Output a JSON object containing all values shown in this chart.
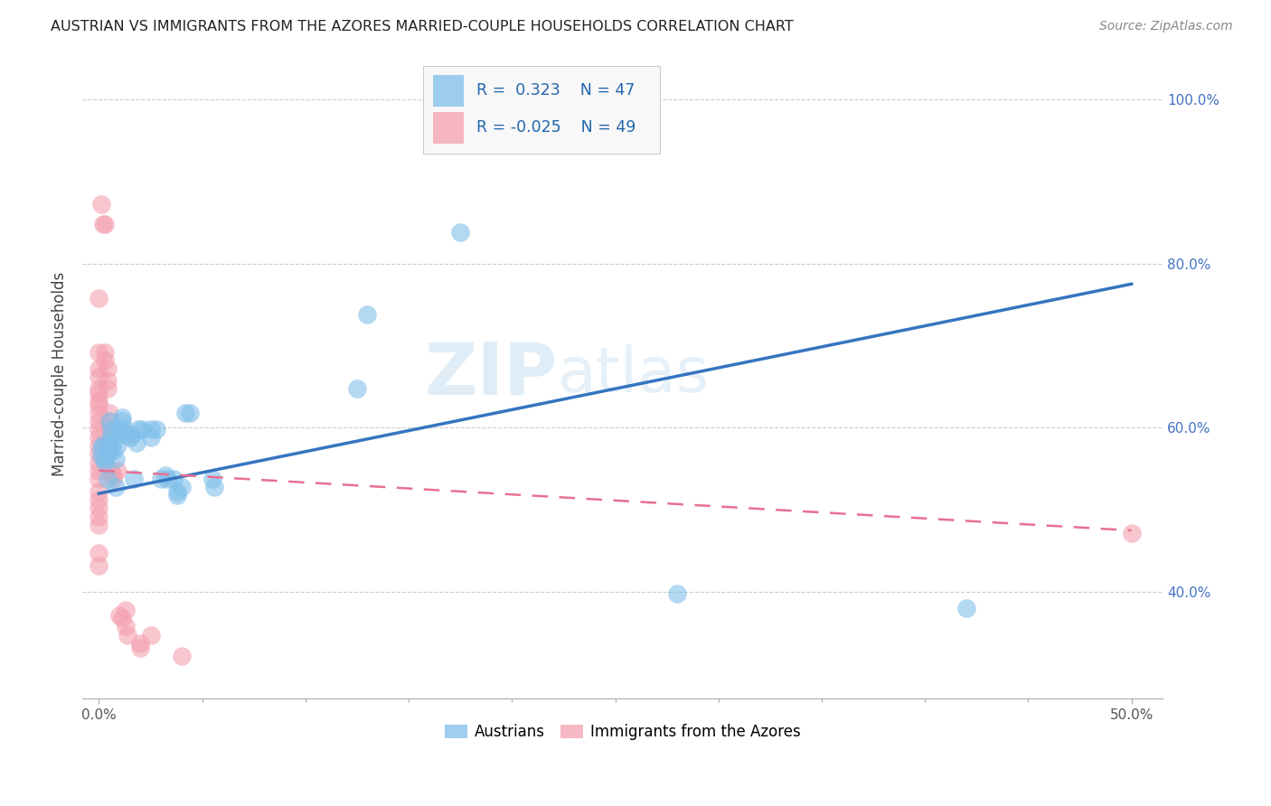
{
  "title": "AUSTRIAN VS IMMIGRANTS FROM THE AZORES MARRIED-COUPLE HOUSEHOLDS CORRELATION CHART",
  "source": "Source: ZipAtlas.com",
  "ylabel": "Married-couple Households",
  "legend_label1": "Austrians",
  "legend_label2": "Immigrants from the Azores",
  "R1": "0.323",
  "N1": "47",
  "R2": "-0.025",
  "N2": "49",
  "blue_color": "#7fbfea",
  "pink_color": "#f4a0b0",
  "blue_line_color": "#3575c0",
  "pink_line_color": "#e87090",
  "blue_scatter": [
    [
      0.001,
      0.575
    ],
    [
      0.001,
      0.565
    ],
    [
      0.002,
      0.58
    ],
    [
      0.003,
      0.558
    ],
    [
      0.003,
      0.562
    ],
    [
      0.004,
      0.568
    ],
    [
      0.004,
      0.572
    ],
    [
      0.004,
      0.538
    ],
    [
      0.005,
      0.608
    ],
    [
      0.005,
      0.582
    ],
    [
      0.006,
      0.598
    ],
    [
      0.006,
      0.592
    ],
    [
      0.007,
      0.582
    ],
    [
      0.007,
      0.572
    ],
    [
      0.008,
      0.528
    ],
    [
      0.008,
      0.562
    ],
    [
      0.009,
      0.578
    ],
    [
      0.01,
      0.598
    ],
    [
      0.011,
      0.608
    ],
    [
      0.011,
      0.612
    ],
    [
      0.012,
      0.598
    ],
    [
      0.013,
      0.592
    ],
    [
      0.015,
      0.588
    ],
    [
      0.016,
      0.592
    ],
    [
      0.017,
      0.538
    ],
    [
      0.018,
      0.582
    ],
    [
      0.019,
      0.598
    ],
    [
      0.021,
      0.598
    ],
    [
      0.025,
      0.598
    ],
    [
      0.025,
      0.588
    ],
    [
      0.028,
      0.598
    ],
    [
      0.03,
      0.538
    ],
    [
      0.032,
      0.542
    ],
    [
      0.033,
      0.538
    ],
    [
      0.036,
      0.538
    ],
    [
      0.038,
      0.518
    ],
    [
      0.038,
      0.522
    ],
    [
      0.04,
      0.528
    ],
    [
      0.042,
      0.618
    ],
    [
      0.044,
      0.618
    ],
    [
      0.055,
      0.538
    ],
    [
      0.056,
      0.528
    ],
    [
      0.125,
      0.648
    ],
    [
      0.13,
      0.738
    ],
    [
      0.175,
      0.838
    ],
    [
      0.28,
      0.398
    ],
    [
      0.42,
      0.38
    ]
  ],
  "pink_scatter": [
    [
      0.0,
      0.758
    ],
    [
      0.0,
      0.692
    ],
    [
      0.0,
      0.672
    ],
    [
      0.0,
      0.662
    ],
    [
      0.0,
      0.648
    ],
    [
      0.0,
      0.642
    ],
    [
      0.0,
      0.632
    ],
    [
      0.0,
      0.628
    ],
    [
      0.0,
      0.618
    ],
    [
      0.0,
      0.608
    ],
    [
      0.0,
      0.598
    ],
    [
      0.0,
      0.588
    ],
    [
      0.0,
      0.578
    ],
    [
      0.0,
      0.568
    ],
    [
      0.0,
      0.558
    ],
    [
      0.0,
      0.548
    ],
    [
      0.0,
      0.538
    ],
    [
      0.0,
      0.522
    ],
    [
      0.0,
      0.512
    ],
    [
      0.0,
      0.502
    ],
    [
      0.0,
      0.492
    ],
    [
      0.0,
      0.482
    ],
    [
      0.0,
      0.448
    ],
    [
      0.0,
      0.432
    ],
    [
      0.001,
      0.872
    ],
    [
      0.002,
      0.848
    ],
    [
      0.003,
      0.848
    ],
    [
      0.003,
      0.692
    ],
    [
      0.003,
      0.682
    ],
    [
      0.004,
      0.672
    ],
    [
      0.004,
      0.658
    ],
    [
      0.004,
      0.648
    ],
    [
      0.005,
      0.618
    ],
    [
      0.005,
      0.608
    ],
    [
      0.005,
      0.598
    ],
    [
      0.006,
      0.548
    ],
    [
      0.007,
      0.542
    ],
    [
      0.007,
      0.538
    ],
    [
      0.009,
      0.548
    ],
    [
      0.01,
      0.372
    ],
    [
      0.011,
      0.368
    ],
    [
      0.013,
      0.378
    ],
    [
      0.013,
      0.358
    ],
    [
      0.014,
      0.348
    ],
    [
      0.02,
      0.338
    ],
    [
      0.02,
      0.332
    ],
    [
      0.025,
      0.348
    ],
    [
      0.04,
      0.322
    ],
    [
      0.5,
      0.472
    ]
  ],
  "xlim": [
    -0.008,
    0.515
  ],
  "ylim": [
    0.27,
    1.06
  ],
  "ytick_vals": [
    0.4,
    0.6,
    0.8,
    1.0
  ],
  "ytick_labels": [
    "40.0%",
    "60.0%",
    "80.0%",
    "100.0%"
  ],
  "xtick_vals": [
    0.0,
    0.5
  ],
  "xtick_labels": [
    "0.0%",
    "50.0%"
  ],
  "blue_trendline_x": [
    0.0,
    0.5
  ],
  "blue_trendline_y": [
    0.52,
    0.775
  ],
  "pink_trendline_x": [
    0.0,
    0.5
  ],
  "pink_trendline_y": [
    0.548,
    0.475
  ]
}
